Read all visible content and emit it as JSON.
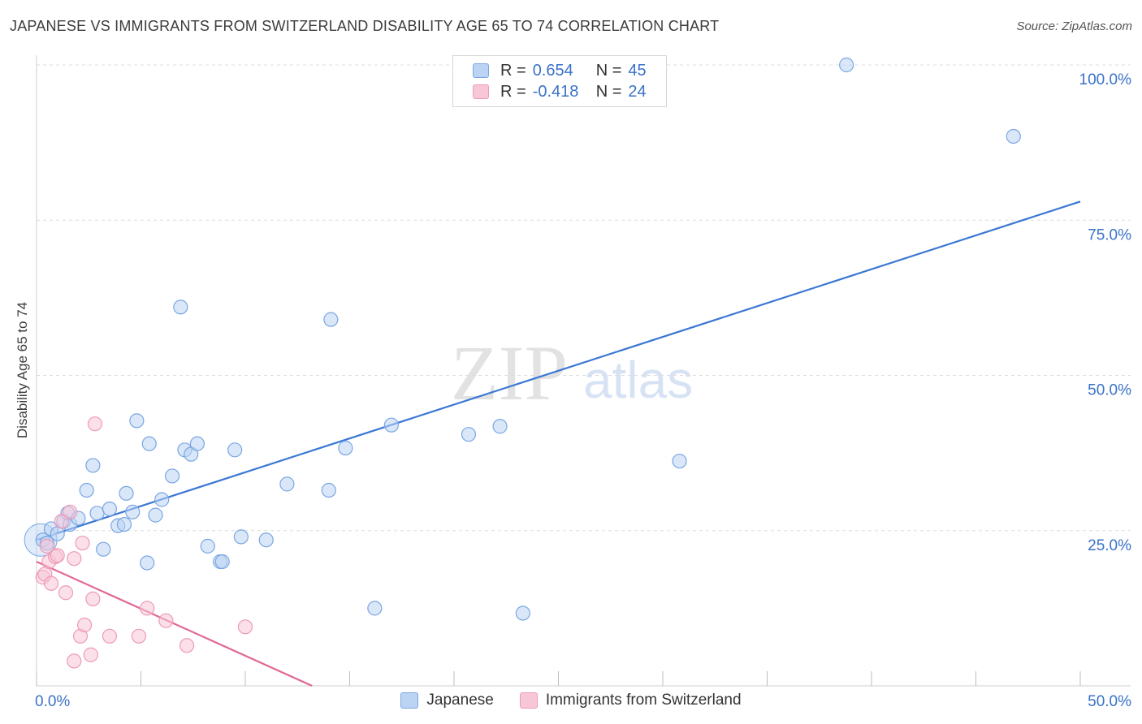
{
  "title": "JAPANESE VS IMMIGRANTS FROM SWITZERLAND DISABILITY AGE 65 TO 74 CORRELATION CHART",
  "source": "Source: ZipAtlas.com",
  "watermark": {
    "part1": "ZIP",
    "part2": "atlas"
  },
  "legend_top": [
    {
      "r_label": "R = ",
      "r_value": "0.654",
      "n_label": "N = ",
      "n_value": "45",
      "fill": "#bcd4f3",
      "stroke": "#7aa6e3"
    },
    {
      "r_label": "R = ",
      "r_value": "-0.418",
      "n_label": "N = ",
      "n_value": "24",
      "fill": "#f8c7d7",
      "stroke": "#ee9ab6"
    }
  ],
  "legend_bottom": [
    {
      "label": "Japanese",
      "fill": "#bcd4f3",
      "stroke": "#7aa6e3"
    },
    {
      "label": "Immigrants from Switzerland",
      "fill": "#f8c7d7",
      "stroke": "#ee9ab6"
    }
  ],
  "chart_data": {
    "type": "scatter",
    "title": "JAPANESE VS IMMIGRANTS FROM SWITZERLAND DISABILITY AGE 65 TO 74 CORRELATION CHART",
    "xlabel": "",
    "ylabel": "Disability Age 65 to 74",
    "xlim": [
      0,
      50
    ],
    "ylim": [
      0,
      100
    ],
    "x_tick_labels": [
      "0.0%",
      "50.0%"
    ],
    "y_tick_labels": [
      "25.0%",
      "50.0%",
      "75.0%",
      "100.0%"
    ],
    "y_ticks": [
      25,
      50,
      75,
      100
    ],
    "grid": "horizontal dashed",
    "series": [
      {
        "name": "Japanese",
        "color": "#3a78d4",
        "fill": "#bcd4f3",
        "stroke": "#7aa6e3",
        "r": 0.654,
        "n": 45,
        "trendline": {
          "x": [
            0,
            50
          ],
          "y": [
            23.5,
            78.0
          ]
        },
        "points": [
          [
            0.3,
            23.5
          ],
          [
            0.5,
            23.0
          ],
          [
            0.7,
            25.3
          ],
          [
            1.0,
            24.5
          ],
          [
            1.3,
            26.5
          ],
          [
            1.5,
            27.8
          ],
          [
            1.6,
            26.0
          ],
          [
            2.0,
            27.0
          ],
          [
            2.4,
            31.5
          ],
          [
            2.7,
            35.5
          ],
          [
            2.9,
            27.8
          ],
          [
            3.2,
            22.0
          ],
          [
            3.5,
            28.5
          ],
          [
            3.9,
            25.8
          ],
          [
            4.2,
            26.0
          ],
          [
            4.3,
            31.0
          ],
          [
            4.6,
            28.0
          ],
          [
            4.8,
            42.7
          ],
          [
            5.3,
            19.8
          ],
          [
            5.4,
            39.0
          ],
          [
            5.7,
            27.5
          ],
          [
            6.0,
            30.0
          ],
          [
            6.5,
            33.8
          ],
          [
            6.9,
            61.0
          ],
          [
            7.1,
            38.0
          ],
          [
            7.4,
            37.3
          ],
          [
            7.7,
            39.0
          ],
          [
            8.2,
            22.5
          ],
          [
            8.8,
            20.0
          ],
          [
            8.9,
            20.0
          ],
          [
            9.5,
            38.0
          ],
          [
            9.8,
            24.0
          ],
          [
            11.0,
            23.5
          ],
          [
            12.0,
            32.5
          ],
          [
            14.0,
            31.5
          ],
          [
            14.1,
            59.0
          ],
          [
            14.8,
            38.3
          ],
          [
            16.2,
            12.5
          ],
          [
            17.0,
            42.0
          ],
          [
            20.7,
            40.5
          ],
          [
            22.2,
            41.8
          ],
          [
            23.3,
            11.7
          ],
          [
            30.8,
            36.2
          ],
          [
            38.8,
            100.0
          ],
          [
            46.8,
            88.5
          ]
        ]
      },
      {
        "name": "Immigrants from Switzerland",
        "color": "#e06a98",
        "fill": "#f8c7d7",
        "stroke": "#ee9ab6",
        "r": -0.418,
        "n": 24,
        "trendline": {
          "x": [
            0,
            13.2
          ],
          "y": [
            20.0,
            0.0
          ]
        },
        "points": [
          [
            0.3,
            17.5
          ],
          [
            0.4,
            18.0
          ],
          [
            0.5,
            22.5
          ],
          [
            0.6,
            20.0
          ],
          [
            0.7,
            16.5
          ],
          [
            0.9,
            20.8
          ],
          [
            1.0,
            21.0
          ],
          [
            1.2,
            26.5
          ],
          [
            1.4,
            15.0
          ],
          [
            1.6,
            28.0
          ],
          [
            1.8,
            20.5
          ],
          [
            2.1,
            8.0
          ],
          [
            2.2,
            23.0
          ],
          [
            2.3,
            9.8
          ],
          [
            2.6,
            5.0
          ],
          [
            2.7,
            14.0
          ],
          [
            2.8,
            42.2
          ],
          [
            3.5,
            8.0
          ],
          [
            4.9,
            8.0
          ],
          [
            5.3,
            12.5
          ],
          [
            6.2,
            10.5
          ],
          [
            7.2,
            6.5
          ],
          [
            10.0,
            9.5
          ],
          [
            1.8,
            4.0
          ]
        ]
      }
    ]
  }
}
